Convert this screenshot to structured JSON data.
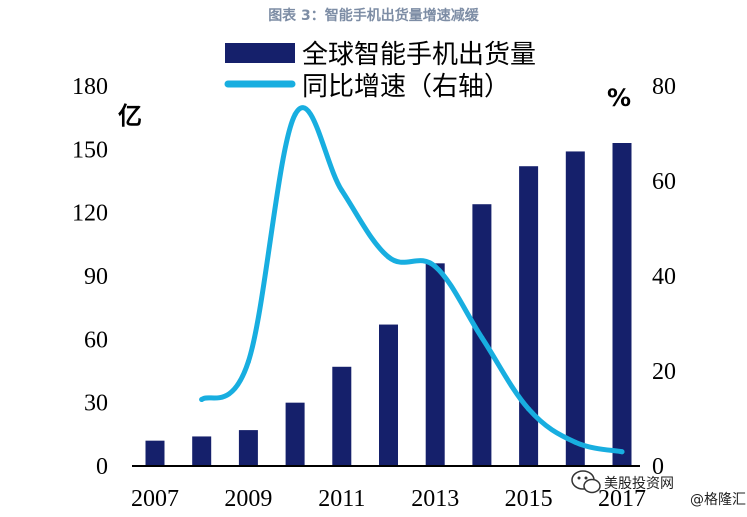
{
  "figure_caption": "图表 3：智能手机出货量增速减缓",
  "watermark": {
    "account": "美股投资网",
    "author": "@格隆汇"
  },
  "chart_data": {
    "type": "bar",
    "categories": [
      "2007",
      "2008",
      "2009",
      "2010",
      "2011",
      "2012",
      "2013",
      "2014",
      "2015",
      "2016",
      "2017"
    ],
    "x_tick_labels": [
      "2007",
      "2009",
      "2011",
      "2013",
      "2015",
      "2017"
    ],
    "series": [
      {
        "name": "全球智能手机出货量",
        "type": "bar",
        "axis": "left",
        "color": "#15206b",
        "values": [
          12,
          14,
          17,
          30,
          47,
          67,
          96,
          124,
          142,
          149,
          153
        ]
      },
      {
        "name": "同比增速（右轴）",
        "type": "line",
        "axis": "right",
        "color": "#18aee0",
        "values": [
          null,
          14,
          22,
          74,
          58,
          44,
          42,
          27,
          12,
          5,
          3
        ]
      }
    ],
    "ylabel_left": "亿",
    "ylabel_right": "%",
    "ylim_left": [
      0,
      180
    ],
    "ylim_right": [
      0,
      80
    ],
    "yticks_left": [
      0,
      30,
      60,
      90,
      120,
      150,
      180
    ],
    "yticks_right": [
      0,
      20,
      40,
      60,
      80
    ],
    "legend_position": "top",
    "grid": false
  }
}
